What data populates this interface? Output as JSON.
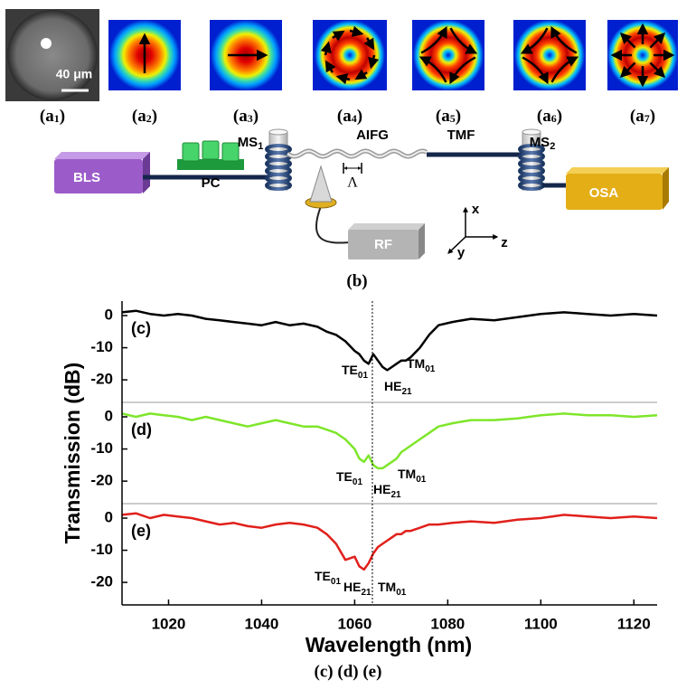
{
  "figure_a": {
    "panels": [
      {
        "main": "(a",
        "sub": "1",
        "close": ")"
      },
      {
        "main": "(a",
        "sub": "2",
        "close": ")"
      },
      {
        "main": "(a",
        "sub": "3",
        "close": ")"
      },
      {
        "main": "(a",
        "sub": "4",
        "close": ")"
      },
      {
        "main": "(a",
        "sub": "5",
        "close": ")"
      },
      {
        "main": "(a",
        "sub": "6",
        "close": ")"
      },
      {
        "main": "(a",
        "sub": "7",
        "close": ")"
      }
    ],
    "scale_bar": "40 μm"
  },
  "diagram": {
    "bls": "BLS",
    "pc": "PC",
    "ms1": {
      "main": "MS",
      "sub": "1"
    },
    "aifg": "AIFG",
    "lambda": "Λ",
    "tmf": "TMF",
    "ms2": {
      "main": "MS",
      "sub": "2"
    },
    "osa": "OSA",
    "rf": "RF",
    "axis_x": "x",
    "axis_y": "y",
    "axis_z": "z"
  },
  "caption_b": "(b)",
  "chart_data": [
    {
      "type": "line",
      "panel_label": "(c)",
      "x": [
        1010,
        1013,
        1016,
        1019,
        1022,
        1025,
        1028,
        1031,
        1034,
        1037,
        1040,
        1043,
        1046,
        1049,
        1052,
        1054,
        1056,
        1058,
        1060,
        1061,
        1062,
        1063,
        1064,
        1065,
        1066,
        1067,
        1068,
        1069,
        1070,
        1071,
        1072,
        1074,
        1076,
        1078,
        1081,
        1085,
        1090,
        1095,
        1100,
        1105,
        1110,
        1115,
        1120,
        1125
      ],
      "series": [
        {
          "color": "#000000",
          "values": [
            1,
            1.5,
            0.5,
            0,
            0.5,
            0,
            -1,
            -1.5,
            -2,
            -2.5,
            -3,
            -2,
            -3,
            -2.5,
            -3.5,
            -5,
            -6,
            -8,
            -11,
            -12,
            -14,
            -15,
            -12,
            -14,
            -16,
            -17,
            -16,
            -15,
            -14,
            -14,
            -13,
            -10,
            -6,
            -3,
            -2,
            -1,
            -1.5,
            -0.5,
            0.5,
            1,
            0.5,
            0,
            0.5,
            0
          ]
        }
      ],
      "xlim": [
        1010,
        1125
      ],
      "ylim": [
        -27,
        4.5
      ],
      "yticks": [
        0,
        -10,
        -20
      ],
      "reference_line_x": 1063.8,
      "annotations": [
        {
          "main": "TE",
          "sub": "01"
        },
        {
          "main": "HE",
          "sub": "21"
        },
        {
          "main": "TM",
          "sub": "01"
        }
      ]
    },
    {
      "type": "line",
      "panel_label": "(d)",
      "x": [
        1010,
        1013,
        1016,
        1019,
        1022,
        1025,
        1028,
        1031,
        1034,
        1037,
        1040,
        1043,
        1046,
        1049,
        1052,
        1054,
        1056,
        1058,
        1060,
        1061,
        1062,
        1063,
        1064,
        1065,
        1066,
        1067,
        1068,
        1069,
        1070,
        1071,
        1072,
        1074,
        1076,
        1078,
        1081,
        1085,
        1090,
        1095,
        1100,
        1105,
        1110,
        1115,
        1120,
        1125
      ],
      "series": [
        {
          "color": "#7ee62a",
          "values": [
            1,
            0,
            1,
            0.5,
            0,
            -1,
            0,
            -1,
            -2,
            -3,
            -2,
            -1,
            -2,
            -3,
            -3,
            -4,
            -5,
            -7,
            -10,
            -13,
            -14,
            -12,
            -15,
            -16,
            -16,
            -15,
            -14,
            -13,
            -11,
            -10,
            -9,
            -7,
            -5,
            -3,
            -2,
            -1,
            -1,
            -0.5,
            0.5,
            1,
            0.5,
            0.5,
            0,
            0.5
          ]
        }
      ],
      "xlim": [
        1010,
        1125
      ],
      "ylim": [
        -27,
        4.5
      ],
      "yticks": [
        0,
        -10,
        -20
      ],
      "ylabel": "Transmission (dB)",
      "annotations": [
        {
          "main": "TE",
          "sub": "01"
        },
        {
          "main": "HE",
          "sub": "21"
        },
        {
          "main": "TM",
          "sub": "01"
        }
      ]
    },
    {
      "type": "line",
      "panel_label": "(e)",
      "x": [
        1010,
        1013,
        1016,
        1019,
        1022,
        1025,
        1028,
        1031,
        1034,
        1037,
        1040,
        1043,
        1046,
        1049,
        1052,
        1054,
        1056,
        1058,
        1060,
        1061,
        1062,
        1063,
        1064,
        1065,
        1066,
        1067,
        1068,
        1069,
        1070,
        1071,
        1072,
        1074,
        1076,
        1078,
        1081,
        1085,
        1090,
        1095,
        1100,
        1105,
        1110,
        1115,
        1120,
        1125
      ],
      "series": [
        {
          "color": "#e0201b",
          "values": [
            1,
            1.5,
            0,
            1,
            0.5,
            0,
            -1,
            -2,
            -1.5,
            -2.5,
            -3,
            -2,
            -1.5,
            -2,
            -3,
            -5,
            -8,
            -13,
            -12,
            -15,
            -16,
            -14,
            -11,
            -9,
            -8,
            -7,
            -6,
            -5,
            -5,
            -4,
            -4,
            -3,
            -2,
            -2,
            -1.5,
            -1,
            -1.5,
            -0.5,
            0,
            1,
            0.5,
            0,
            0.5,
            0
          ]
        }
      ],
      "xlim": [
        1010,
        1125
      ],
      "ylim": [
        -27,
        4.5
      ],
      "yticks": [
        0,
        -10,
        -20
      ],
      "xticks": [
        1020,
        1040,
        1060,
        1080,
        1100,
        1120
      ],
      "xlabel": "Wavelength (nm)",
      "annotations": [
        {
          "main": "TE",
          "sub": "01"
        },
        {
          "main": "HE",
          "sub": "21"
        },
        {
          "main": "TM",
          "sub": "01"
        }
      ]
    }
  ],
  "caption_cde": "(c) (d) (e)"
}
